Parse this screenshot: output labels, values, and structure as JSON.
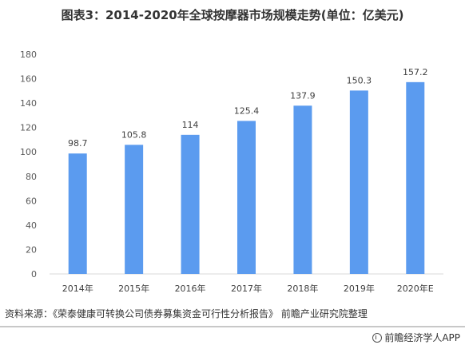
{
  "chart_data": {
    "type": "bar",
    "title": "图表3：2014-2020年全球按摩器市场规模走势(单位：亿美元)",
    "categories": [
      "2014年",
      "2015年",
      "2016年",
      "2017年",
      "2018年",
      "2019年",
      "2020年E"
    ],
    "values": [
      98.7,
      105.8,
      114,
      125.4,
      137.9,
      150.3,
      157.2
    ],
    "value_labels": [
      "98.7",
      "105.8",
      "114",
      "125.4",
      "137.9",
      "150.3",
      "157.2"
    ],
    "yticks": [
      "0",
      "20",
      "40",
      "60",
      "80",
      "100",
      "120",
      "140",
      "160",
      "180"
    ],
    "ylim": [
      0,
      180
    ],
    "xlabel": "",
    "ylabel": "",
    "grid": false,
    "legend": "none",
    "bar_color": "#5b9bef"
  },
  "source": "资料来源：《荣泰健康可转换公司债券募集资金可行性分析报告》 前瞻产业研究院整理",
  "brand": {
    "name": "前瞻经济学人APP",
    "icon": "qianzhan-logo-icon"
  }
}
